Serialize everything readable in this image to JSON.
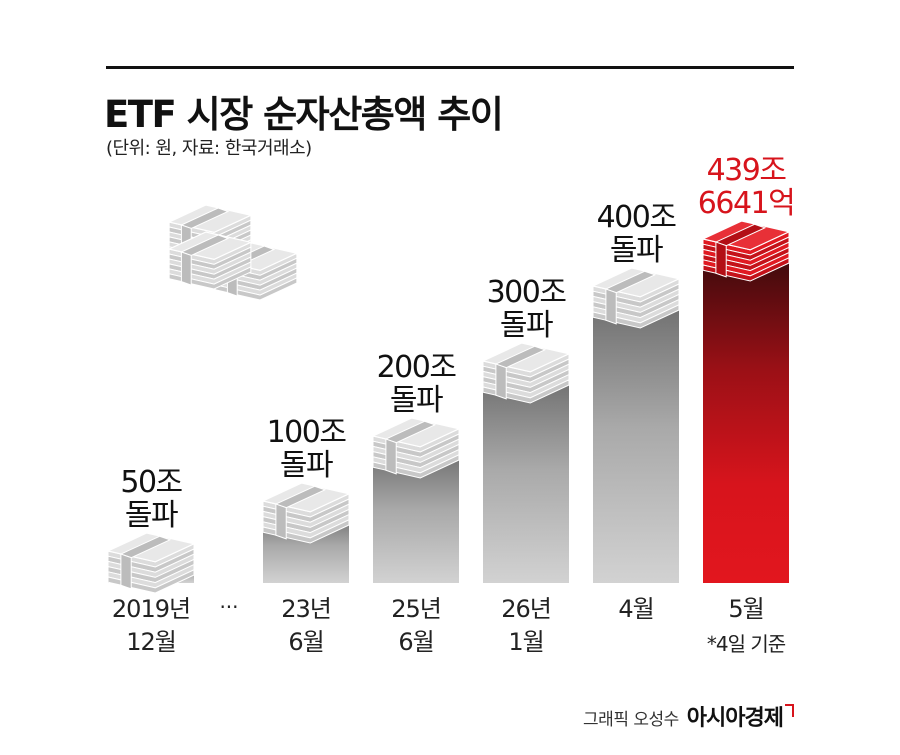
{
  "title": "ETF 시장 순자산총액 추이",
  "subtitle": "(단위: 원, 자료: 한국거래소)",
  "credit": {
    "graphic": "그래픽 오성수",
    "brand": "아시아경제"
  },
  "colors": {
    "highlight": "#d7141c",
    "bar_top_gray": "#6e6e6e",
    "bar_bottom_gray": "#cfcfcf",
    "text": "#1a1a1a"
  },
  "chart_data": {
    "type": "bar",
    "title": "ETF 시장 순자산총액 추이",
    "unit": "원",
    "categories": [
      "2019년 12월",
      "23년 6월",
      "25년 6월",
      "26년 1월",
      "4월",
      "5월"
    ],
    "values_jo": [
      50,
      100,
      200,
      300,
      400,
      439.6641
    ],
    "bar_labels": [
      [
        "50조",
        "돌파"
      ],
      [
        "100조",
        "돌파"
      ],
      [
        "200조",
        "돌파"
      ],
      [
        "300조",
        "돌파"
      ],
      [
        "400조",
        "돌파"
      ],
      [
        "439조",
        "6641억"
      ]
    ],
    "x_labels": [
      [
        "2019년",
        "12월"
      ],
      [
        "23년",
        "6월"
      ],
      [
        "25년",
        "6월"
      ],
      [
        "26년",
        "1월"
      ],
      [
        "4월"
      ],
      [
        "5월"
      ]
    ],
    "gap_marker": "···",
    "footnote": "*4일 기준",
    "highlight_index": 5,
    "icons": [
      "money-stack-icon"
    ]
  }
}
